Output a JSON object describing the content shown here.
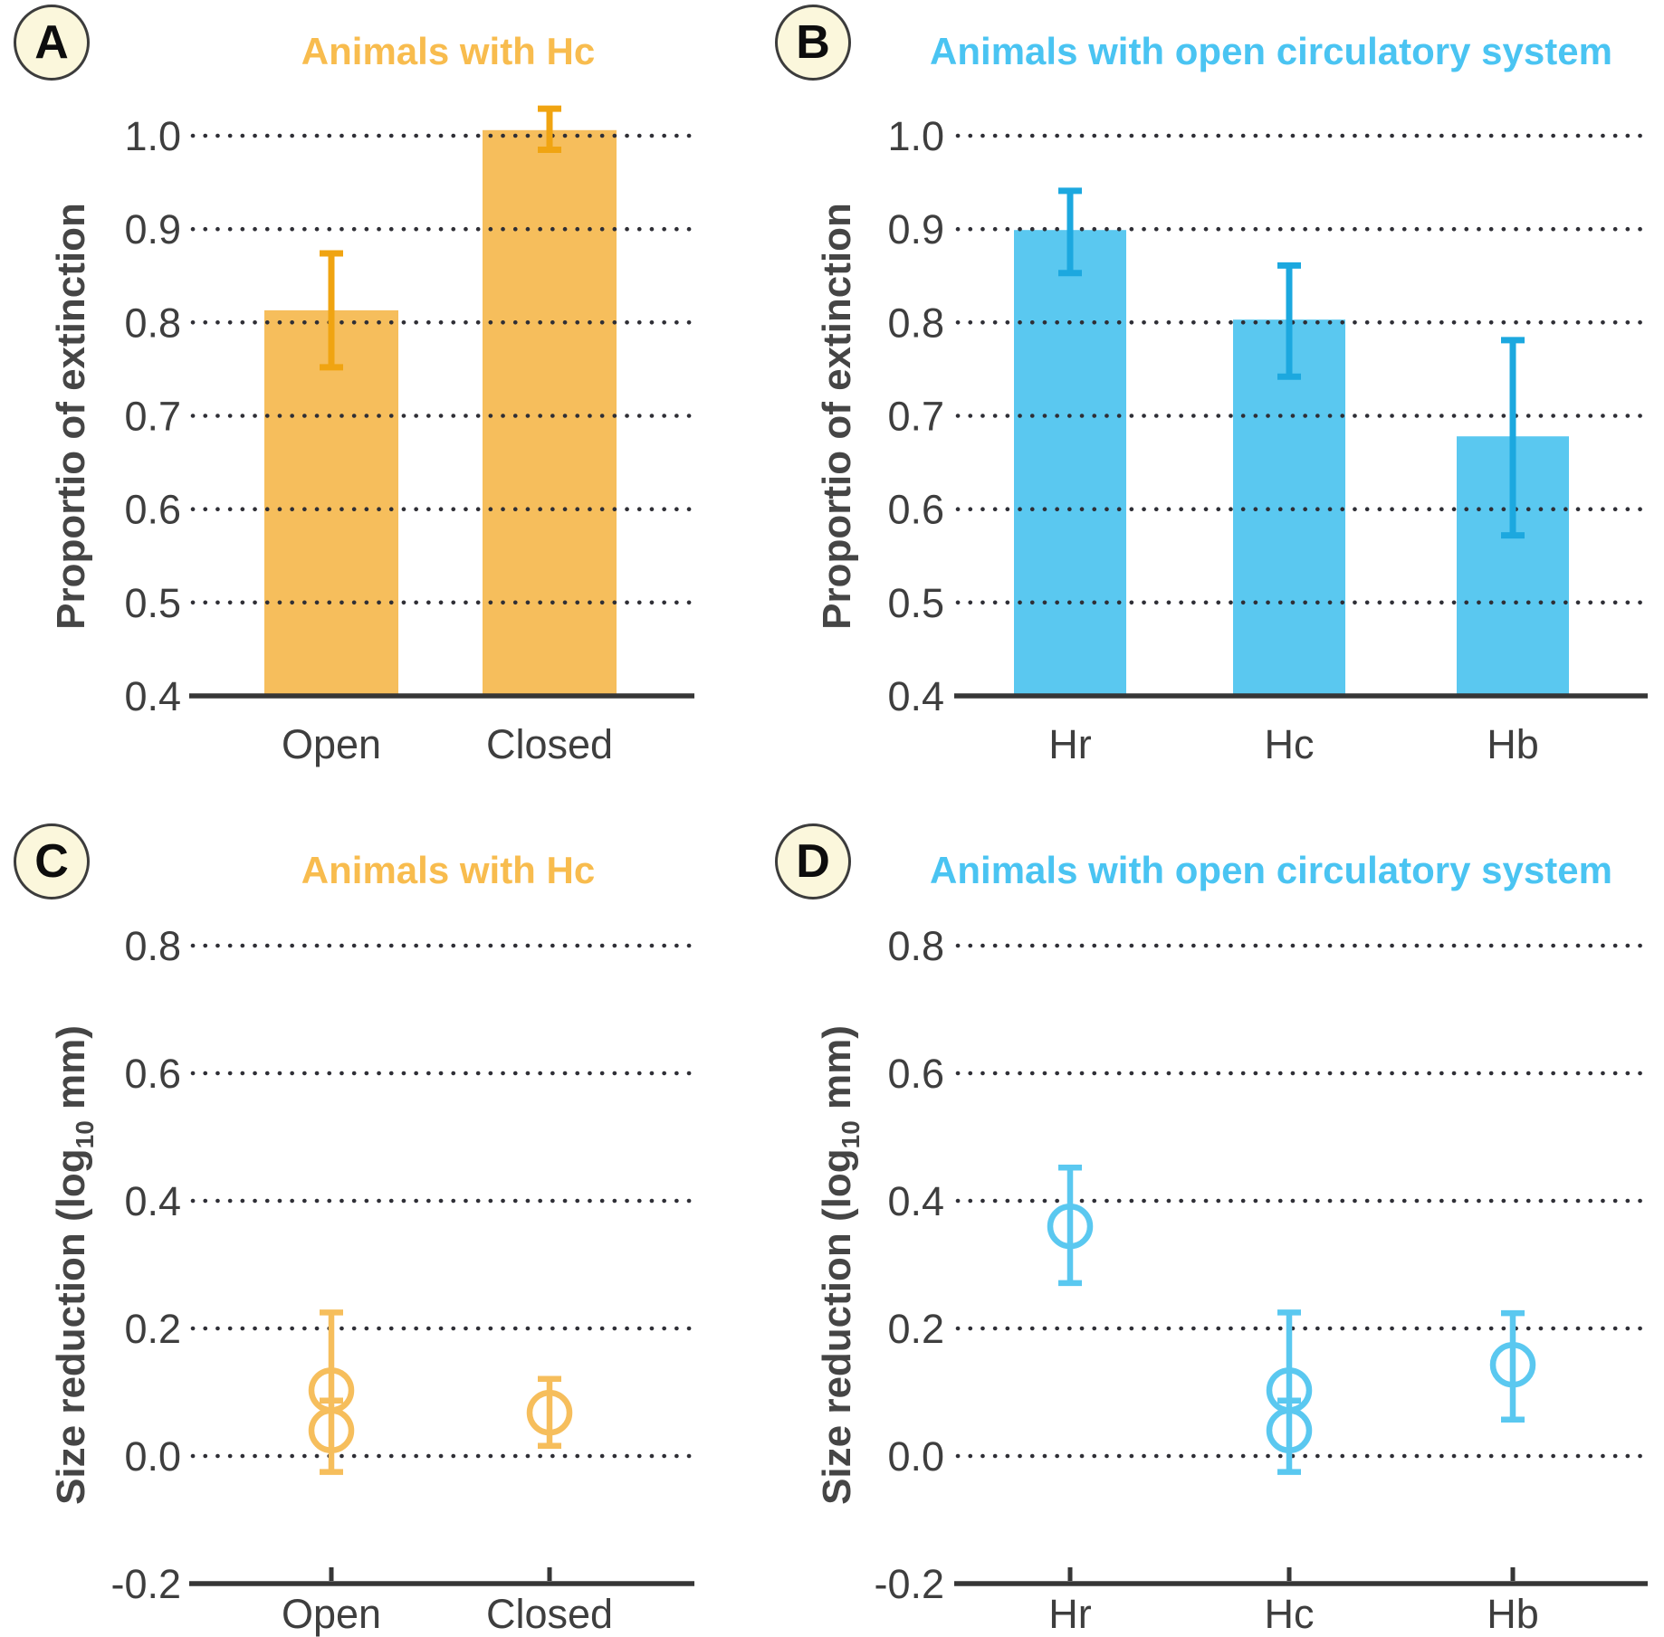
{
  "figure_title": "",
  "chart_data": [
    {
      "panel": "A",
      "type": "bar",
      "title": "Animals with Hc",
      "title_color": "#F8BC4E",
      "bar_color": "#F6BE5C",
      "error_color": "#F0A411",
      "ylabel": {
        "pre": "Proportio of extinction",
        "sub": "",
        "post": ""
      },
      "categories": [
        "Open",
        "Closed"
      ],
      "values": [
        0.813,
        1.006
      ],
      "error_bars": [
        [
          0.752,
          0.874
        ],
        [
          0.985,
          1.029
        ]
      ],
      "ylim": [
        0.4,
        1.05
      ],
      "yticks": [
        "0.4",
        "0.5",
        "0.6",
        "0.7",
        "0.8",
        "0.9",
        "1.0"
      ],
      "grid": "dotted-horizontal",
      "legend": "none"
    },
    {
      "panel": "B",
      "type": "bar",
      "title": "Animals with open circulatory system",
      "title_color": "#4AC4F2",
      "bar_color": "#5AC8F0",
      "error_color": "#1CA8DF",
      "ylabel": {
        "pre": "Proportio of extinction",
        "sub": "",
        "post": ""
      },
      "categories": [
        "Hr",
        "Hc",
        "Hb"
      ],
      "values": [
        0.899,
        0.803,
        0.678
      ],
      "error_bars": [
        [
          0.853,
          0.941
        ],
        [
          0.742,
          0.861
        ],
        [
          0.572,
          0.781
        ]
      ],
      "ylim": [
        0.4,
        1.05
      ],
      "yticks": [
        "0.4",
        "0.5",
        "0.6",
        "0.7",
        "0.8",
        "0.9",
        "1.0"
      ],
      "grid": "dotted-horizontal",
      "legend": "none"
    },
    {
      "panel": "C",
      "type": "scatter",
      "title": "Animals with Hc",
      "title_color": "#F8BC4E",
      "marker_color": "#F6BE5C",
      "error_color": "#F2B23A",
      "ylabel": {
        "pre": "Size reduction (log",
        "sub": "10",
        "post": " mm)"
      },
      "categories": [
        "Open",
        "Closed"
      ],
      "points": [
        {
          "category": "Open",
          "markers": [
            0.103,
            0.04
          ],
          "interval": [
            -0.025,
            0.225
          ],
          "caps": [
            0.225,
            0.087,
            -0.025
          ]
        },
        {
          "category": "Closed",
          "markers": [
            0.068
          ],
          "interval": [
            0.016,
            0.121
          ],
          "caps": [
            0.121,
            0.016
          ]
        }
      ],
      "ylim": [
        -0.2,
        0.87
      ],
      "yticks": [
        "-0.2",
        "0.0",
        "0.2",
        "0.4",
        "0.6",
        "0.8"
      ],
      "grid": "dotted-horizontal",
      "legend": "none"
    },
    {
      "panel": "D",
      "type": "scatter",
      "title": "Animals with open circulatory system",
      "title_color": "#4AC4F2",
      "marker_color": "#5AC8F0",
      "error_color": "#47C2EF",
      "ylabel": {
        "pre": "Size reduction (log",
        "sub": "10",
        "post": " mm)"
      },
      "categories": [
        "Hr",
        "Hc",
        "Hb"
      ],
      "points": [
        {
          "category": "Hr",
          "markers": [
            0.36
          ],
          "interval": [
            0.271,
            0.452
          ],
          "caps": [
            0.452,
            0.271
          ]
        },
        {
          "category": "Hc",
          "markers": [
            0.103,
            0.04
          ],
          "interval": [
            -0.025,
            0.225
          ],
          "caps": [
            0.225,
            0.087,
            -0.025
          ]
        },
        {
          "category": "Hb",
          "markers": [
            0.143
          ],
          "interval": [
            0.057,
            0.224
          ],
          "caps": [
            0.224,
            0.057
          ]
        }
      ],
      "ylim": [
        -0.2,
        0.87
      ],
      "yticks": [
        "-0.2",
        "0.0",
        "0.2",
        "0.4",
        "0.6",
        "0.8"
      ],
      "grid": "dotted-horizontal",
      "legend": "none"
    }
  ],
  "style_colors": {
    "grid_dots": "#2F2F36",
    "axis_line": "#363636",
    "tick_text": "#3E3E3E",
    "badge_fill": "#FBF7DC"
  }
}
